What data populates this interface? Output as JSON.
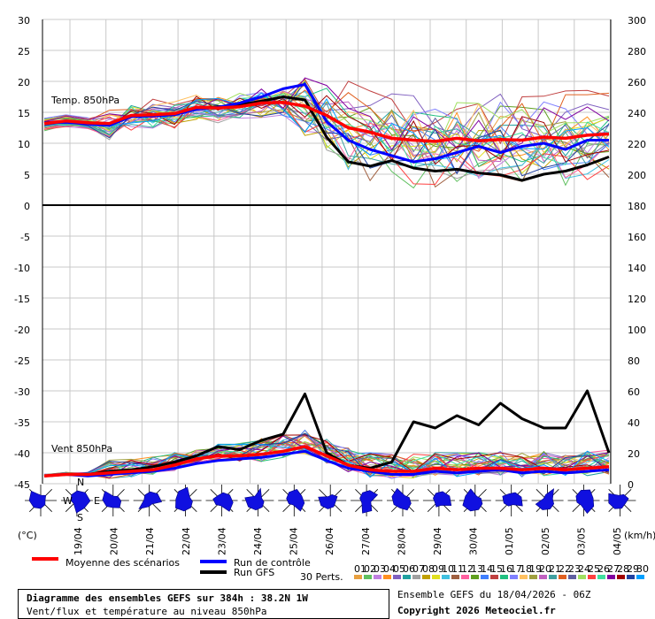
{
  "chart_data": {
    "type": "line",
    "panels": [
      {
        "label": "Temp. 850hPa",
        "y_range": [
          0,
          30
        ],
        "ticks_left": [
          "30",
          "25",
          "20",
          "15",
          "10",
          "5",
          "0"
        ],
        "series": [
          {
            "name": "Moyenne des scénarios",
            "color": "#ff0000",
            "values": [
              13.2,
              13.6,
              13.3,
              13.2,
              14.5,
              14.6,
              14.8,
              15.8,
              15.7,
              15.9,
              16.5,
              16.6,
              16.0,
              14.5,
              12.5,
              11.8,
              10.8,
              10.5,
              10.3,
              10.8,
              10.4,
              10.6,
              10.5,
              11.0,
              10.8,
              11.3,
              11.5
            ]
          },
          {
            "name": "Run de contrôle",
            "color": "#0000ff",
            "values": [
              13.3,
              13.4,
              13.1,
              12.9,
              14.3,
              14.4,
              14.6,
              15.5,
              15.8,
              16.5,
              17.5,
              18.8,
              19.5,
              13.5,
              10.5,
              9.0,
              8.0,
              7.0,
              7.5,
              8.5,
              9.5,
              8.5,
              9.5,
              10.0,
              9.0,
              10.5,
              10.5
            ]
          },
          {
            "name": "Run GFS",
            "color": "#000000",
            "values": [
              13.3,
              13.5,
              13.2,
              13.0,
              14.4,
              14.5,
              14.7,
              15.6,
              15.9,
              16.2,
              16.8,
              17.5,
              17.0,
              11.0,
              7.0,
              6.3,
              7.2,
              6.0,
              5.5,
              5.8,
              5.2,
              4.9,
              4.0,
              5.0,
              5.5,
              6.5,
              7.8
            ]
          }
        ]
      },
      {
        "label": "Vent 850hPa",
        "y_range": [
          0,
          180
        ],
        "ticks_left": [
          "0",
          "-5",
          "-10",
          "-15",
          "-20",
          "-25",
          "-30",
          "-35",
          "-40",
          "-45"
        ],
        "series": [
          {
            "name": "Moyenne des scénarios",
            "color": "#ff0000",
            "values": [
              5,
              6,
              6,
              7,
              8,
              9,
              12,
              16,
              18,
              18,
              19,
              21,
              24,
              18,
              12,
              9,
              8,
              8,
              10,
              9,
              10,
              10,
              9,
              10,
              9,
              10,
              11
            ]
          },
          {
            "name": "Run de contrôle",
            "color": "#0000ff",
            "values": [
              5,
              6,
              5,
              6,
              7,
              8,
              10,
              13,
              15,
              16,
              17,
              19,
              21,
              15,
              10,
              8,
              6,
              6,
              8,
              7,
              8,
              9,
              7,
              8,
              7,
              8,
              9
            ]
          },
          {
            "name": "Run GFS",
            "color": "#000000",
            "values": [
              5,
              6,
              6,
              8,
              9,
              11,
              14,
              18,
              24,
              22,
              28,
              32,
              58,
              20,
              12,
              10,
              14,
              40,
              36,
              44,
              38,
              52,
              42,
              36,
              36,
              60,
              20
            ]
          }
        ]
      }
    ],
    "right_ticks": [
      "300",
      "280",
      "260",
      "240",
      "220",
      "200",
      "180",
      "160",
      "140",
      "120",
      "100",
      "80",
      "60",
      "40",
      "20",
      "0"
    ],
    "x_tick_labels": [
      "19/04",
      "20/04",
      "21/04",
      "22/04",
      "23/04",
      "24/04",
      "25/04",
      "26/04",
      "27/04",
      "28/04",
      "29/04",
      "30/04",
      "01/05",
      "02/05",
      "03/05",
      "04/05"
    ],
    "x_unit_left": "(°C)",
    "x_unit_right": "(km/h)",
    "legend": {
      "mean": "Moyenne des scénarios",
      "control": "Run de contrôle",
      "gfs": "Run GFS",
      "perts_label": "30 Perts.",
      "perts": [
        "01",
        "02",
        "03",
        "04",
        "05",
        "06",
        "07",
        "08",
        "09",
        "10",
        "11",
        "12",
        "13",
        "14",
        "15",
        "16",
        "17",
        "18",
        "19",
        "20",
        "21",
        "22",
        "23",
        "24",
        "25",
        "26",
        "27",
        "28",
        "29",
        "30"
      ],
      "pert_colors": [
        "#e8a040",
        "#60c060",
        "#c080e0",
        "#ff9020",
        "#8060c0",
        "#20a0a0",
        "#a0a0a0",
        "#c0a000",
        "#e0e020",
        "#40c0e0",
        "#a06040",
        "#ff60a0",
        "#60a020",
        "#4080ff",
        "#c04040",
        "#20c080",
        "#8080ff",
        "#ffc060",
        "#a0a040",
        "#c060c0",
        "#40a0a0",
        "#e06020",
        "#6060a0",
        "#a0e060",
        "#ff4040",
        "#40e0a0",
        "#8000a0",
        "#a00000",
        "#2040a0",
        "#00a0ff"
      ]
    },
    "compass": {
      "n": "N",
      "w": "W",
      "e": "E",
      "s": "S"
    }
  },
  "footer": {
    "title": "Diagramme des ensembles GEFS sur 384h : 38.2N 1W",
    "subtitle": "Vent/flux et température au niveau 850hPa",
    "run_info": "Ensemble GEFS du 18/04/2026 - 06Z",
    "copyright": "Copyright 2026 Meteociel.fr"
  }
}
